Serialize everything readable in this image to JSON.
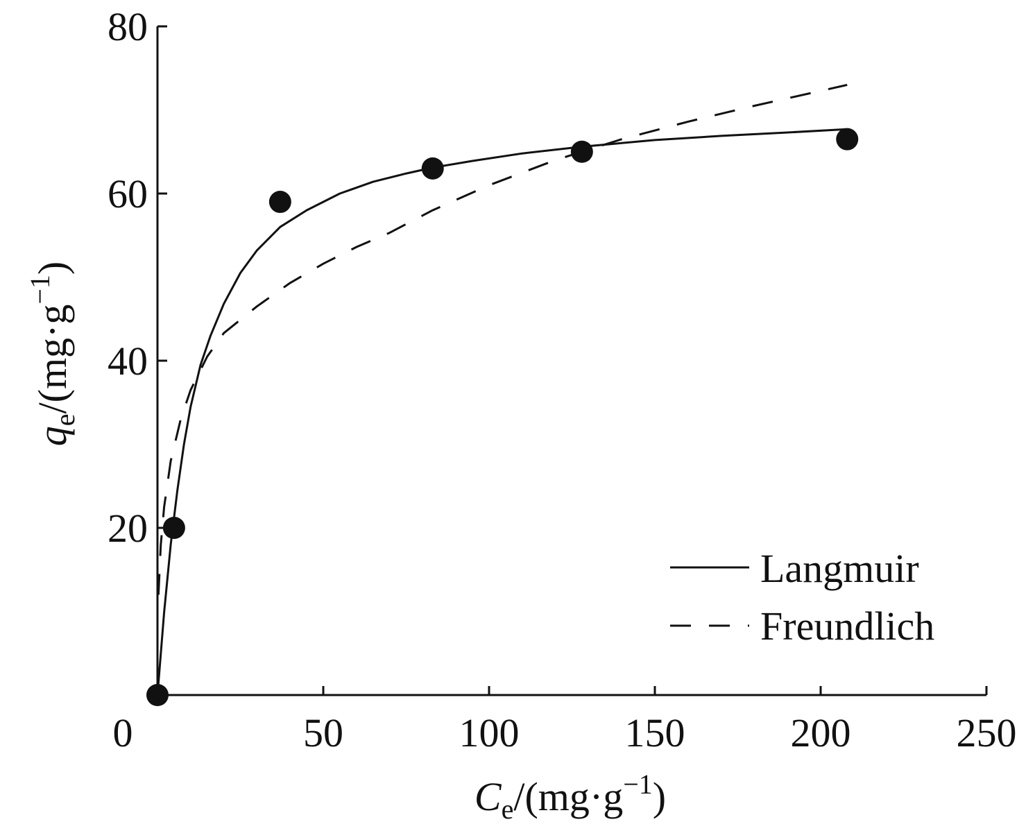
{
  "chart_data": {
    "type": "scatter",
    "x_axis": {
      "label_var": "C",
      "label_sub": "e",
      "label_unit": "/(mg·g",
      "label_sup": "−1",
      "label_close": ")",
      "range": [
        0,
        250
      ],
      "ticks": [
        0,
        50,
        100,
        150,
        200,
        250
      ],
      "tick_labels": [
        "0",
        "50",
        "100",
        "150",
        "200",
        "250"
      ]
    },
    "y_axis": {
      "label_var": "q",
      "label_sub": "e",
      "label_unit": "/(mg·g",
      "label_sup": "−1",
      "label_close": ")",
      "range": [
        0,
        80
      ],
      "ticks": [
        20,
        40,
        60,
        80
      ],
      "tick_labels": [
        "20",
        "40",
        "60",
        "80"
      ]
    },
    "grid": false,
    "legend_position": "bottom-right",
    "points": {
      "x": [
        0,
        5,
        37,
        83,
        128,
        208
      ],
      "y": [
        0,
        20,
        59,
        63,
        65,
        66.5
      ]
    },
    "series": [
      {
        "name": "Langmuir",
        "style": "solid",
        "x": [
          0,
          2,
          4,
          6,
          8,
          10,
          13,
          16,
          20,
          25,
          30,
          37,
          45,
          55,
          65,
          75,
          83,
          95,
          110,
          128,
          150,
          170,
          190,
          208
        ],
        "y": [
          0,
          9.9,
          18.0,
          24.5,
          30.0,
          34.5,
          39.5,
          43.0,
          46.8,
          50.5,
          53.2,
          56.0,
          58.0,
          60.0,
          61.4,
          62.4,
          63.1,
          63.9,
          64.8,
          65.6,
          66.4,
          66.9,
          67.3,
          67.7
        ]
      },
      {
        "name": "Freundlich",
        "style": "dashed",
        "x": [
          0.3,
          1,
          2,
          4,
          7,
          10,
          15,
          20,
          30,
          40,
          50,
          60,
          70,
          83,
          100,
          120,
          140,
          160,
          180,
          208
        ],
        "y": [
          12.0,
          18.0,
          22.5,
          28.0,
          33.0,
          36.5,
          40.5,
          43.3,
          46.5,
          49.3,
          51.6,
          53.6,
          55.3,
          58.0,
          61.0,
          64.0,
          66.5,
          68.6,
          70.5,
          73.0
        ]
      }
    ],
    "colors": {
      "ink": "#111111",
      "background": "#ffffff"
    }
  }
}
